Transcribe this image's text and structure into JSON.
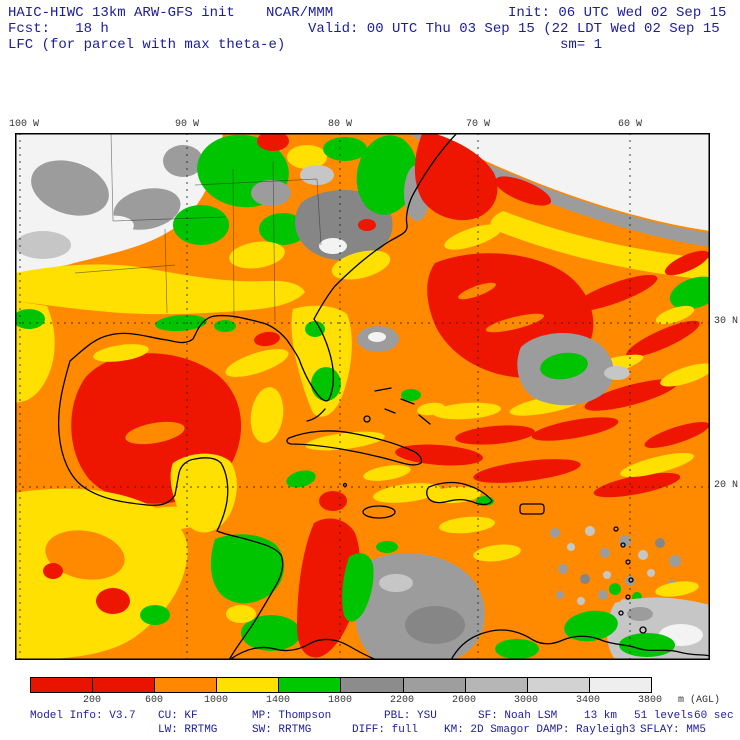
{
  "header": {
    "model": "HAIC-HIWC 13km ARW-GFS init",
    "org": "NCAR/MMM",
    "init": "Init: 06 UTC Wed 02 Sep 15",
    "fcst": "Fcst:   18 h",
    "valid": "Valid: 00 UTC Thu 03 Sep 15 (22 LDT Wed 02 Sep 15",
    "field": "LFC (for parcel with max theta-e)",
    "sm": "sm= 1"
  },
  "map": {
    "lon_labels": [
      "100 W",
      "90 W",
      "80 W",
      "70 W",
      "60 W"
    ],
    "lat_labels": [
      "30 N",
      "20 N"
    ]
  },
  "colorbar": {
    "tick_labels": [
      "200",
      "600",
      "1000",
      "1400",
      "1800",
      "2200",
      "2600",
      "3000",
      "3400",
      "3800"
    ],
    "unit_label": "m (AGL)",
    "colors": [
      "#e81400",
      "#e81400",
      "#ff8800",
      "#ffe000",
      "#00c800",
      "#8c8c8c",
      "#9e9e9e",
      "#b6b6b6",
      "#d2d2d2",
      "#eeeeee"
    ]
  },
  "footer": {
    "items_line1": [
      "Model Info: V3.7",
      "CU: KF",
      "MP: Thompson",
      "PBL: YSU",
      "SF: Noah LSM",
      "13 km",
      "51 levels",
      "60 sec"
    ],
    "items_line2": [
      "LW: RRTMG",
      "SW: RRTMG",
      "DIFF: full",
      "KM: 2D Smagor DAMP: Rayleigh3",
      "SFLAY: MM5"
    ]
  },
  "palette": {
    "red": "#ee1600",
    "orange": "#ff8a00",
    "yellow": "#ffe000",
    "green": "#00c400",
    "gray": "#9c9c9c",
    "darkgray": "#868686",
    "lightgray": "#c6c6c6",
    "offwhite": "#f3f3f3",
    "white": "#ffffff"
  }
}
